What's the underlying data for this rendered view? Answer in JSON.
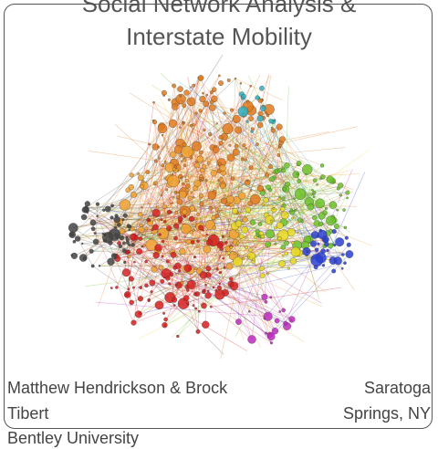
{
  "title": "Social Network Analysis & Interstate Mobility",
  "authors": "Matthew Hendrickson & Brock Tibert",
  "location": "Saratoga Springs, NY",
  "affiliation": "Bentley University"
}
